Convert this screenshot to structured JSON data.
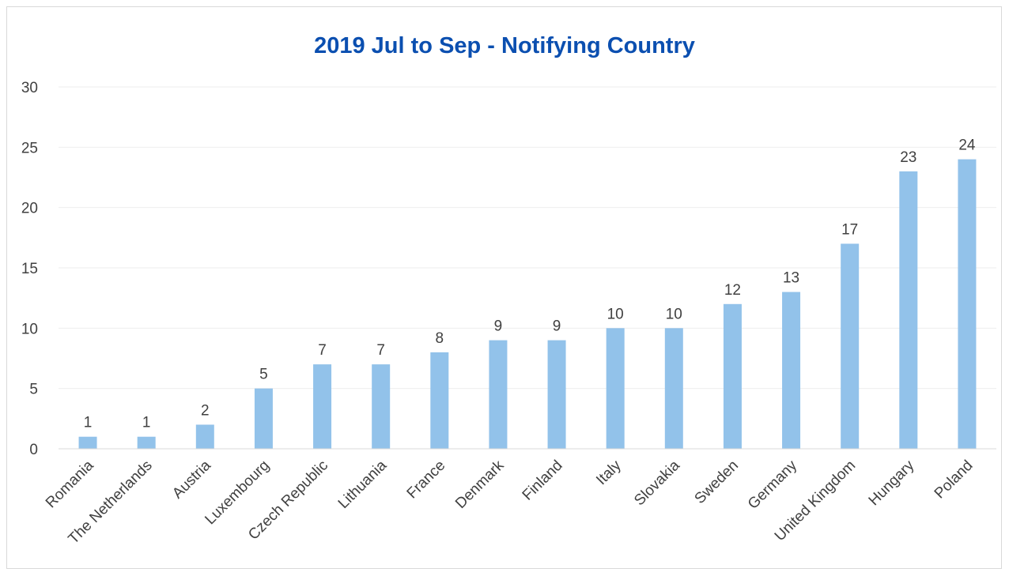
{
  "chart_data": {
    "type": "bar",
    "title": "2019 Jul to Sep - Notifying Country",
    "xlabel": "",
    "ylabel": "",
    "categories": [
      "Romania",
      "The Netherlands",
      "Austria",
      "Luxembourg",
      "Czech Republic",
      "Lithuania",
      "France",
      "Denmark",
      "Finland",
      "Italy",
      "Slovakia",
      "Sweden",
      "Germany",
      "United Kingdom",
      "Hungary",
      "Poland"
    ],
    "values": [
      1,
      1,
      2,
      5,
      7,
      7,
      8,
      9,
      9,
      10,
      10,
      12,
      13,
      17,
      23,
      24
    ],
    "ylim": [
      0,
      30
    ],
    "yticks": [
      "0",
      "5",
      "10",
      "15",
      "20",
      "25",
      "30"
    ],
    "grid": true,
    "data_labels": true,
    "legend": "none",
    "colors": {
      "bar": "#92c2ea",
      "title": "#0b4fb0",
      "grid": "#eeeeee",
      "axis": "#d9d9d9",
      "text": "#404040"
    }
  }
}
